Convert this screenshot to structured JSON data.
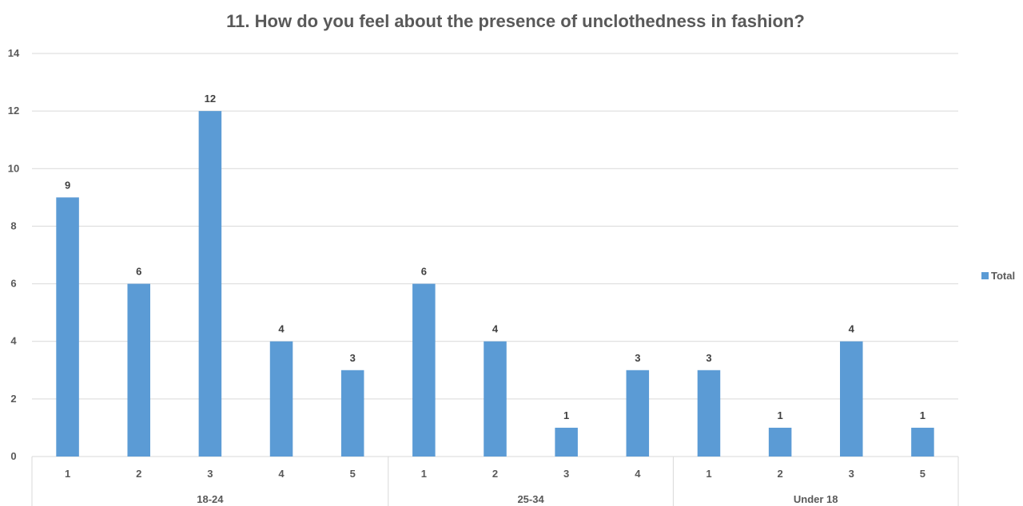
{
  "chart_data": {
    "type": "bar",
    "title": "11. How do you feel about the presence of unclothedness in fashion?",
    "groups": [
      {
        "label": "18-24",
        "categories": [
          "1",
          "2",
          "3",
          "4",
          "5"
        ],
        "values": [
          9,
          6,
          12,
          4,
          3
        ]
      },
      {
        "label": "25-34",
        "categories": [
          "1",
          "2",
          "3",
          "4"
        ],
        "values": [
          6,
          4,
          1,
          3
        ]
      },
      {
        "label": "Under 18",
        "categories": [
          "1",
          "2",
          "3",
          "5"
        ],
        "values": [
          3,
          1,
          4,
          1
        ]
      }
    ],
    "series": [
      {
        "name": "Total"
      }
    ],
    "ylim": [
      0,
      14
    ],
    "yticks": [
      0,
      2,
      4,
      6,
      8,
      10,
      12,
      14
    ],
    "grid": true,
    "legend_position": "right",
    "bar_color": "#5B9BD5",
    "grid_color": "#D9D9D9"
  }
}
